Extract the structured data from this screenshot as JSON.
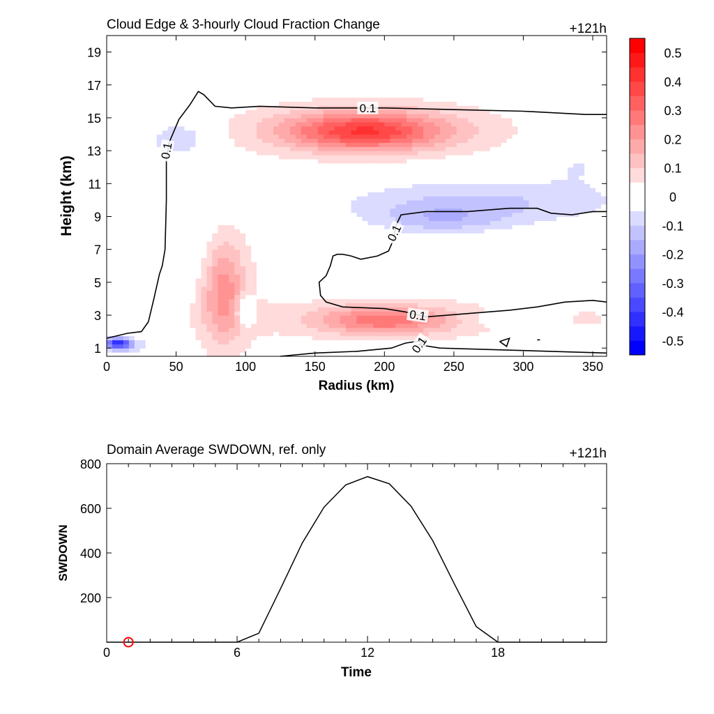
{
  "chart_data": [
    {
      "type": "heatmap",
      "title": "Cloud Edge & 3-hourly Cloud Fraction Change",
      "time_label": "+121h",
      "xlabel": "Radius (km)",
      "ylabel": "Height (km)",
      "xlim": [
        0,
        360
      ],
      "ylim": [
        0.5,
        20
      ],
      "xticks": [
        0,
        50,
        100,
        150,
        200,
        250,
        300,
        350
      ],
      "yticks": [
        1,
        3,
        5,
        7,
        9,
        11,
        13,
        15,
        17,
        19
      ],
      "colorbar": {
        "min": -0.55,
        "max": 0.55,
        "step": 0.05,
        "colors": {
          "negative": "#0000ff",
          "zero": "#ffffff",
          "positive": "#ff0000"
        },
        "tick_values": [
          0.5,
          0.4,
          0.3,
          0.2,
          0.1,
          0,
          -0.1,
          -0.2,
          -0.3,
          -0.4,
          -0.5
        ],
        "tick_labels": [
          "0.5",
          "0.4",
          "0.3",
          "0.2",
          "0.1",
          "0",
          "-0.1",
          "-0.2",
          "-0.3",
          "-0.4",
          "-0.5"
        ]
      },
      "anomalies": [
        {
          "x": 185,
          "y": 14.2,
          "rx": 55,
          "ry": 1.1,
          "value": 0.3
        },
        {
          "x": 190,
          "y": 14.3,
          "rx": 100,
          "ry": 1.8,
          "value": 0.1
        },
        {
          "x": 200,
          "y": 2.7,
          "rx": 45,
          "ry": 0.8,
          "value": 0.2
        },
        {
          "x": 200,
          "y": 2.8,
          "rx": 110,
          "ry": 1.3,
          "value": 0.08
        },
        {
          "x": 84,
          "y": 4.6,
          "rx": 14,
          "ry": 2.8,
          "value": 0.15
        },
        {
          "x": 86,
          "y": 4.3,
          "rx": 24,
          "ry": 4.2,
          "value": 0.07
        },
        {
          "x": 270,
          "y": 9.9,
          "rx": 110,
          "ry": 1.5,
          "value": -0.12
        },
        {
          "x": 240,
          "y": 8.8,
          "rx": 45,
          "ry": 0.9,
          "value": -0.1
        },
        {
          "x": 52,
          "y": 13.7,
          "rx": 22,
          "ry": 1.1,
          "value": -0.12
        },
        {
          "x": 340,
          "y": 12.3,
          "rx": 25,
          "ry": 1.2,
          "value": -0.06
        },
        {
          "x": 8,
          "y": 1.3,
          "rx": 9,
          "ry": 0.3,
          "value": -0.35
        },
        {
          "x": 10,
          "y": 1.2,
          "rx": 20,
          "ry": 0.6,
          "value": -0.12
        },
        {
          "x": 100,
          "y": 3.3,
          "rx": 7,
          "ry": 0.9,
          "value": -0.15
        },
        {
          "x": 295,
          "y": 2.8,
          "rx": 40,
          "ry": 0.5,
          "value": -0.06
        },
        {
          "x": 345,
          "y": 2.8,
          "rx": 20,
          "ry": 0.6,
          "value": 0.05
        },
        {
          "x": 65,
          "y": 7.0,
          "rx": 15,
          "ry": 2.5,
          "value": -0.04
        }
      ],
      "contour_level": "0.1",
      "contours": [
        {
          "level": 0.1,
          "points": [
            [
              0,
              1.6
            ],
            [
              15,
              1.9
            ],
            [
              25,
              2.0
            ],
            [
              30,
              2.6
            ],
            [
              34,
              4.0
            ],
            [
              38,
              5.5
            ],
            [
              40,
              6.0
            ],
            [
              42,
              7.0
            ],
            [
              43,
              10.0
            ],
            [
              43,
              12.5
            ],
            [
              45,
              13.5
            ],
            [
              52,
              14.9
            ],
            [
              60,
              15.8
            ],
            [
              66,
              16.6
            ],
            [
              70,
              16.4
            ],
            [
              78,
              15.7
            ],
            [
              90,
              15.6
            ],
            [
              110,
              15.7
            ],
            [
              150,
              15.6
            ],
            [
              200,
              15.6
            ],
            [
              250,
              15.5
            ],
            [
              300,
              15.4
            ],
            [
              345,
              15.2
            ],
            [
              360,
              15.2
            ]
          ]
        },
        {
          "level": 0.1,
          "points": [
            [
              360,
              9.3
            ],
            [
              350,
              9.3
            ],
            [
              335,
              9.1
            ],
            [
              320,
              9.2
            ],
            [
              310,
              9.5
            ],
            [
              290,
              9.5
            ],
            [
              260,
              9.3
            ],
            [
              230,
              9.3
            ],
            [
              212,
              9.1
            ],
            [
              208,
              8.4
            ],
            [
              207,
              7.7
            ],
            [
              203,
              6.9
            ],
            [
              195,
              6.6
            ],
            [
              183,
              6.4
            ],
            [
              176,
              6.6
            ],
            [
              170,
              6.7
            ],
            [
              166,
              6.7
            ],
            [
              163,
              6.6
            ],
            [
              161,
              6.0
            ],
            [
              158,
              5.4
            ],
            [
              153,
              5.0
            ],
            [
              154,
              4.2
            ],
            [
              158,
              3.8
            ],
            [
              170,
              3.5
            ],
            [
              200,
              3.4
            ],
            [
              215,
              3.2
            ],
            [
              230,
              2.9
            ],
            [
              260,
              3.1
            ],
            [
              290,
              3.3
            ],
            [
              310,
              3.5
            ],
            [
              330,
              3.8
            ],
            [
              350,
              3.9
            ],
            [
              360,
              3.8
            ]
          ]
        },
        {
          "level": 0.1,
          "points": [
            [
              125,
              0.5
            ],
            [
              150,
              0.7
            ],
            [
              180,
              0.8
            ],
            [
              205,
              1.0
            ],
            [
              215,
              1.3
            ],
            [
              230,
              1.5
            ],
            [
              225,
              1.2
            ],
            [
              240,
              1.0
            ],
            [
              280,
              0.9
            ],
            [
              320,
              0.8
            ],
            [
              360,
              0.7
            ]
          ]
        },
        {
          "level": 0.1,
          "points": [
            [
              283,
              1.4
            ],
            [
              290,
              1.6
            ],
            [
              288,
              1.1
            ],
            [
              283,
              1.4
            ]
          ]
        },
        {
          "level": 0.1,
          "points": [
            [
              310,
              1.5
            ],
            [
              312,
              1.5
            ]
          ]
        }
      ],
      "contour_labels": [
        {
          "x": 188,
          "y": 15.6,
          "angle": 0
        },
        {
          "x": 43,
          "y": 13.0,
          "angle": -80
        },
        {
          "x": 207,
          "y": 8.0,
          "angle": -65
        },
        {
          "x": 224,
          "y": 3.0,
          "angle": 8
        },
        {
          "x": 225,
          "y": 1.2,
          "angle": -55
        }
      ]
    },
    {
      "type": "line",
      "title": "Domain Average SWDOWN, ref. only",
      "time_label": "+121h",
      "xlabel": "Time",
      "ylabel": "SWDOWN",
      "xlim": [
        0,
        23
      ],
      "ylim": [
        0,
        800
      ],
      "xticks": [
        0,
        6,
        12,
        18
      ],
      "yticks": [
        200,
        400,
        600,
        800
      ],
      "x": [
        0,
        1,
        2,
        3,
        4,
        5,
        6,
        7,
        8,
        9,
        10,
        11,
        12,
        13,
        14,
        15,
        16,
        17,
        18,
        19,
        20,
        21,
        22,
        23
      ],
      "series": [
        {
          "values": [
            0,
            0,
            0,
            0,
            0,
            0,
            0,
            40,
            240,
            445,
            605,
            705,
            742,
            710,
            610,
            455,
            260,
            70,
            0,
            0,
            0,
            0,
            0,
            0
          ],
          "color": "#000000"
        }
      ],
      "marker": {
        "x": 1,
        "y": 0,
        "color": "#ff0000"
      }
    }
  ]
}
